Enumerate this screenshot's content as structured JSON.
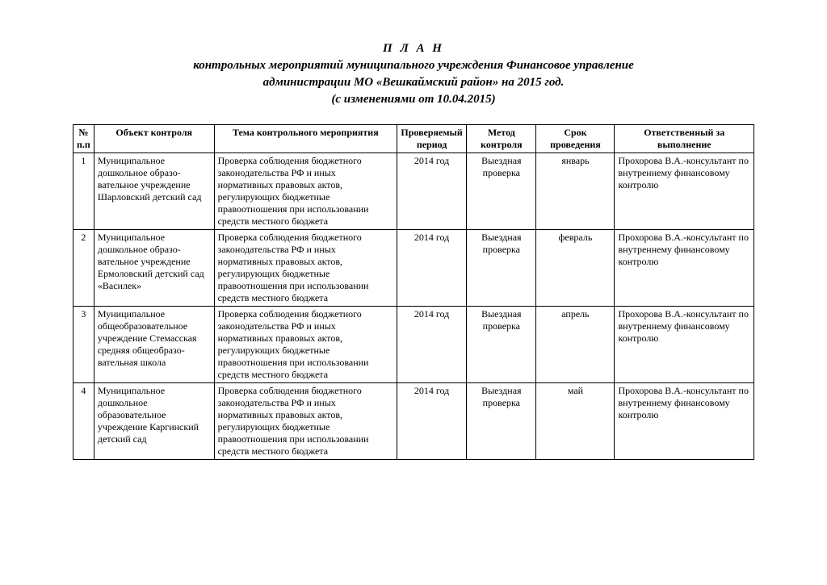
{
  "title": {
    "line1": "П Л А Н",
    "line2": "контрольных мероприятий муниципального учреждения Финансовое управление",
    "line3": "администрации МО «Вешкаймский район» на 2015 год.",
    "line4": "(с изменениями от 10.04.2015)"
  },
  "columns": {
    "num": "№ п.п",
    "object": "Объект контроля",
    "theme": "Тема контрольного мероприятия",
    "period": "Проверяемый период",
    "method": "Метод контроля",
    "term": "Срок проведения",
    "responsible": "Ответственный за выполнение"
  },
  "rows": [
    {
      "num": "1",
      "object": "Муниципальное дошкольное образо-вательное учреждение Шарловский детский сад",
      "theme": "Проверка соблюдения бюджетного законодательства РФ и иных нормативных правовых актов, регулирующих бюджетные правоотношения при использовании средств местного бюджета",
      "period": "2014 год",
      "method": "Выездная проверка",
      "term": "январь",
      "responsible": "Прохорова В.А.-консультант по внутреннему финансовому контролю"
    },
    {
      "num": "2",
      "object": "Муниципальное дошкольное образо-вательное учреждение Ермоловский детский сад «Василек»",
      "theme": "Проверка соблюдения бюджетного законодательства РФ и иных нормативных правовых актов, регулирующих бюджетные правоотношения при использовании средств местного бюджета",
      "period": "2014 год",
      "method": "Выездная проверка",
      "term": "февраль",
      "responsible": "Прохорова В.А.-консультант по внутреннему финансовому контролю"
    },
    {
      "num": "3",
      "object": "Муниципальное общеобразовательное учреждение Стемасская средняя общеобразо-вательная школа",
      "theme": "Проверка соблюдения бюджетного законодательства РФ и иных нормативных правовых актов, регулирующих бюджетные правоотношения при использовании средств местного бюджета",
      "period": "2014 год",
      "method": "Выездная проверка",
      "term": "апрель",
      "responsible": "Прохорова В.А.-консультант по внутреннему финансовому контролю"
    },
    {
      "num": "4",
      "object": "Муниципальное дошкольное образовательное учреждение Каргинский детский сад",
      "theme": "Проверка соблюдения бюджетного законодательства РФ и иных нормативных правовых актов, регулирующих бюджетные правоотношения при использовании средств местного бюджета",
      "period": "2014 год",
      "method": "Выездная проверка",
      "term": "май",
      "responsible": "Прохорова В.А.-консультант по внутреннему финансовому контролю"
    }
  ]
}
